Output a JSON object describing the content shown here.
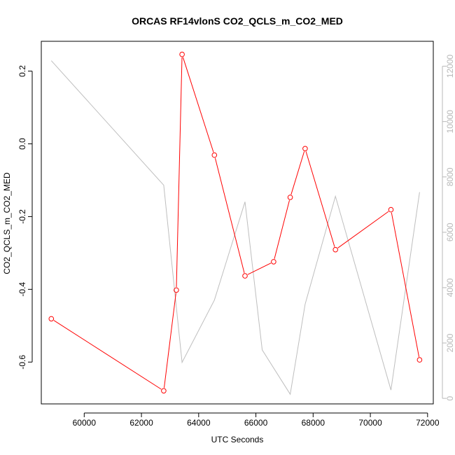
{
  "chart_data": {
    "type": "line",
    "title": "ORCAS RF14vlonS CO2_QCLS_m_CO2_MED",
    "xlabel": "UTC Seconds",
    "ylabel": "CO2_QCLS_m_CO2_MED",
    "y2label": "",
    "xlim": [
      58500,
      72200
    ],
    "ylim": [
      -0.715,
      0.282
    ],
    "y2lim": [
      -200,
      12900
    ],
    "x_ticks": [
      60000,
      62000,
      64000,
      66000,
      68000,
      70000,
      72000
    ],
    "y_ticks": [
      -0.6,
      -0.4,
      -0.2,
      0.0,
      0.2
    ],
    "y_tick_labels": [
      "-0.6",
      "-0.4",
      "-0.2",
      "0.0",
      "0.2"
    ],
    "y2_ticks": [
      0,
      2000,
      4000,
      6000,
      8000,
      10000,
      12000
    ],
    "series": [
      {
        "role": "primary",
        "color": "#ff0000",
        "marker": "open-circle",
        "x": [
          58850,
          62780,
          63220,
          63420,
          64550,
          65620,
          66620,
          67200,
          67720,
          68780,
          70720,
          71720
        ],
        "y": [
          -0.481,
          -0.679,
          -0.402,
          0.246,
          -0.031,
          -0.363,
          -0.324,
          -0.147,
          -0.013,
          -0.291,
          -0.181,
          -0.594
        ]
      },
      {
        "role": "secondary",
        "color": "#bebebe",
        "marker": "none",
        "x": [
          58850,
          62780,
          63420,
          64550,
          65620,
          66220,
          67200,
          67720,
          68780,
          70720,
          71720
        ],
        "y": [
          12200,
          7700,
          1300,
          3550,
          7100,
          1750,
          150,
          3400,
          7300,
          300,
          7450
        ]
      }
    ]
  }
}
